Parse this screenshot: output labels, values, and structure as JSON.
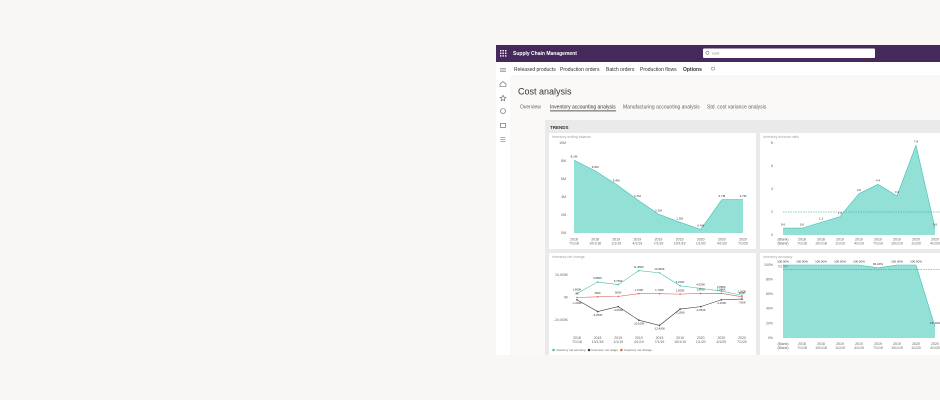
{
  "app": {
    "title": "Supply Chain Management",
    "search": "cost"
  },
  "action_bar": [
    "Released products",
    "Production orders",
    "Batch orders",
    "Production flows",
    "Options"
  ],
  "page": {
    "title": "Cost analysis",
    "tabs": [
      "Overview",
      "Inventory accounting analysis",
      "Manufacturing accounting analysis",
      "Std. cost variance analysis"
    ],
    "selected_tab": 1,
    "section": "TRENDS"
  },
  "chart_data": [
    {
      "type": "area",
      "title": "Inventory ending balance",
      "categories": [
        "7/1/18",
        "10/1/18",
        "1/1/19",
        "4/1/19",
        "7/1/19",
        "10/1/19",
        "1/1/20",
        "4/1/20",
        "7/1/20"
      ],
      "category_groups": [
        "2018",
        "2018",
        "2019",
        "2019",
        "2019",
        "2019",
        "2020",
        "2020",
        "2020"
      ],
      "values": [
        8.1,
        6.9,
        5.4,
        3.7,
        2.1,
        1.2,
        0.4,
        3.7,
        3.7
      ],
      "value_labels": [
        "8.1M",
        "6.9M",
        "5.4M",
        "3.7M",
        "2.1M",
        "1.2M",
        "0.4M",
        "3.7M",
        "3.7M"
      ],
      "color": "#93e0d7",
      "line_color": "#3fbfae",
      "ylim": [
        0,
        10
      ],
      "yticks": [
        {
          "value": 0,
          "label": "0M"
        },
        {
          "value": 2,
          "label": "2M"
        },
        {
          "value": 4,
          "label": "4M"
        },
        {
          "value": 6,
          "label": "6M"
        },
        {
          "value": 8,
          "label": "8M"
        },
        {
          "value": 10,
          "label": "10M"
        }
      ]
    },
    {
      "type": "area",
      "title": "Inventory turnover ratio",
      "categories": [
        "(Blank)",
        "7/1/18",
        "10/1/18",
        "1/1/19",
        "4/1/19",
        "7/1/19",
        "10/1/19",
        "1/1/20",
        "4/1/20"
      ],
      "category_groups": [
        "(Blank)",
        "2018",
        "2018",
        "2019",
        "2019",
        "2019",
        "2019",
        "2020",
        "2020"
      ],
      "values": [
        0.6,
        0.6,
        1.1,
        1.6,
        3.6,
        4.4,
        3.4,
        7.8,
        0.6
      ],
      "color": "#93e0d7",
      "line_color": "#3fbfae",
      "reference": 2,
      "ylim": [
        0,
        8
      ],
      "yticks": [
        0,
        2,
        4,
        6,
        8
      ]
    },
    {
      "type": "line",
      "title": "Inventory net change",
      "categories": [
        "7/1/18",
        "10/1/18",
        "1/1/19",
        "4/1/19",
        "7/1/19",
        "10/1/19",
        "1/1/20",
        "4/1/20",
        "7/1/20"
      ],
      "category_groups": [
        "2018",
        "2018",
        "2019",
        "2019",
        "2019",
        "2019",
        "2020",
        "2020",
        "2020"
      ],
      "series": [
        {
          "name": "Inventory net accruing",
          "color": "#3fbfae",
          "values": [
            1800,
            6880,
            5750,
            11950,
            10950,
            5200,
            4050,
            2880,
            1000
          ],
          "value_labels": [
            "1,800K",
            "6,880K",
            "5,750K",
            "11,950K",
            "10,950K",
            "5,200K",
            "4,050K",
            "2,880K",
            "1,000K"
          ]
        },
        {
          "name": "Inventory net usage",
          "color": "#3b3a39",
          "values": [
            -1000,
            -6250,
            -4050,
            -10100,
            -12400,
            -5150,
            -4050,
            -1000,
            -700
          ],
          "value_labels": [
            "-1,000K",
            "-6,250K",
            "-4,050K",
            "-10,100K",
            "-12,400K",
            "-5,150K",
            "-4,050K",
            "-1,000K",
            "-700K"
          ]
        },
        {
          "name": "Inventory net change",
          "color": "#d9634f",
          "values": [
            0,
            300,
            500,
            1700,
            1700,
            1500,
            1800,
            1880,
            300
          ],
          "value_labels": [
            "0K",
            "300K",
            "500K",
            "1,700K",
            "1,700K",
            "1,500K",
            "1,800K",
            "1,880K",
            "300K"
          ]
        }
      ],
      "ylim": [
        -15000,
        15000
      ],
      "yticks": [
        {
          "value": -10000,
          "label": "-10,000K"
        },
        {
          "value": 0,
          "label": "0K"
        },
        {
          "value": 10000,
          "label": "10,000K"
        }
      ]
    },
    {
      "type": "area",
      "title": "Inventory accuracy",
      "categories": [
        "(Blank)",
        "7/1/18",
        "10/1/18",
        "1/1/19",
        "4/1/19",
        "7/1/19",
        "10/1/19",
        "1/1/20",
        "4/1/20"
      ],
      "category_groups": [
        "(Blank)",
        "2018",
        "2018",
        "2019",
        "2019",
        "2019",
        "2019",
        "2020",
        "2020"
      ],
      "values": [
        100,
        100,
        100,
        100,
        100,
        96.2,
        100,
        100,
        15.4
      ],
      "value_labels": [
        "100.00%",
        "100.00%",
        "100.00%",
        "100.00%",
        "100.00%",
        "96.20%",
        "100.00%",
        "100.00%",
        "15.40%"
      ],
      "color": "#93e0d7",
      "line_color": "#3fbfae",
      "reference": 93.5,
      "reference_label": "93.5%",
      "ylim": [
        0,
        100
      ],
      "yticks": [
        {
          "value": 0,
          "label": "0%"
        },
        {
          "value": 20,
          "label": "20%"
        },
        {
          "value": 40,
          "label": "40%"
        },
        {
          "value": 60,
          "label": "60%"
        },
        {
          "value": 80,
          "label": "80%"
        },
        {
          "value": 100,
          "label": "100%"
        }
      ]
    }
  ]
}
